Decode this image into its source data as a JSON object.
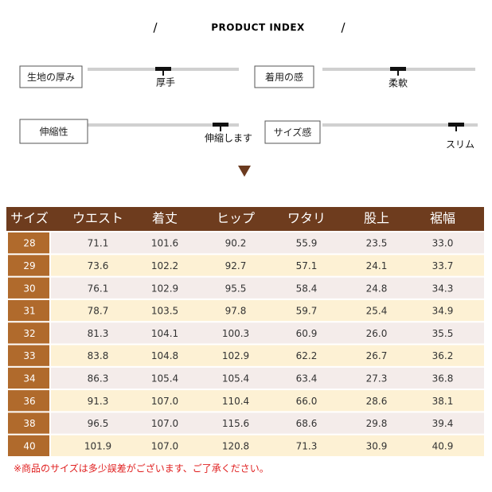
{
  "header": {
    "title": "PRODUCT INDEX"
  },
  "indicators": [
    {
      "label": "生地の厚み",
      "marker": "厚手"
    },
    {
      "label": "着用の感",
      "marker": "柔軟"
    },
    {
      "label": "伸縮性",
      "marker": "伸縮します"
    },
    {
      "label": "サイズ感",
      "marker": "スリム"
    }
  ],
  "table": {
    "columns": [
      "サイズ",
      "ウエスト",
      "着丈",
      "ヒップ",
      "ワタリ",
      "股上",
      "裾幅"
    ],
    "rows": [
      [
        "28",
        "71.1",
        "101.6",
        "90.2",
        "55.9",
        "23.5",
        "33.0"
      ],
      [
        "29",
        "73.6",
        "102.2",
        "92.7",
        "57.1",
        "24.1",
        "33.7"
      ],
      [
        "30",
        "76.1",
        "102.9",
        "95.5",
        "58.4",
        "24.8",
        "34.3"
      ],
      [
        "31",
        "78.7",
        "103.5",
        "97.8",
        "59.7",
        "25.4",
        "34.9"
      ],
      [
        "32",
        "81.3",
        "104.1",
        "100.3",
        "60.9",
        "26.0",
        "35.5"
      ],
      [
        "33",
        "83.8",
        "104.8",
        "102.9",
        "62.2",
        "26.7",
        "36.2"
      ],
      [
        "34",
        "86.3",
        "105.4",
        "105.4",
        "63.4",
        "27.3",
        "36.8"
      ],
      [
        "36",
        "91.3",
        "107.0",
        "110.4",
        "66.0",
        "28.6",
        "38.1"
      ],
      [
        "38",
        "96.5",
        "107.0",
        "115.6",
        "68.6",
        "29.8",
        "39.4"
      ],
      [
        "40",
        "101.9",
        "107.0",
        "120.8",
        "71.3",
        "30.9",
        "40.9"
      ]
    ]
  },
  "footnote": "※商品のサイズは多少誤差がございます、ご了承ください。"
}
